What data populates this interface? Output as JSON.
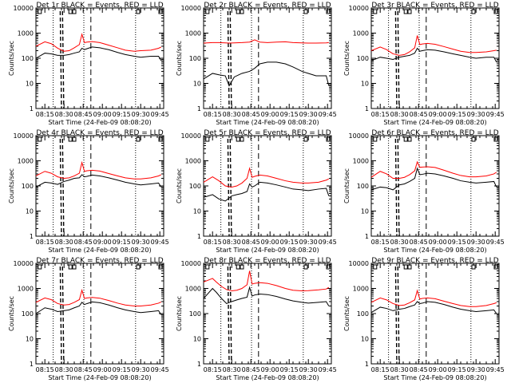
{
  "colors": {
    "events": "#000000",
    "lld": "#ff0000"
  },
  "chart_data": {
    "type": "line",
    "grid": "3x3",
    "yscale": "log",
    "ylim": [
      1,
      10000
    ],
    "y_ticks": [
      "1",
      "10",
      "100",
      "1000",
      "10000"
    ],
    "ylabel": "Counts/sec",
    "x_ticks": [
      "08:15",
      "08:30",
      "08:45",
      "09:00",
      "09:15",
      "09:30",
      "09:45"
    ],
    "xlim": [
      "08:08",
      "09:48"
    ],
    "xlabel": "Start Time (24-Feb-09 08:08:20)",
    "panels": [
      {
        "title": "Det 1r BLACK = Events, RED = LLD",
        "x": [
          "08:08",
          "08:15",
          "08:20",
          "08:25",
          "08:30",
          "08:34",
          "08:38",
          "08:42",
          "08:44",
          "08:46",
          "08:48",
          "08:52",
          "08:58",
          "09:05",
          "09:12",
          "09:18",
          "09:25",
          "09:30",
          "09:38",
          "09:44",
          "09:46"
        ],
        "series": [
          {
            "name": "BLACK = Events",
            "values": [
              100,
              160,
              150,
              130,
              130,
              140,
              160,
              180,
              250,
              220,
              240,
              280,
              260,
              220,
              170,
              140,
              120,
              110,
              120,
              120,
              80
            ]
          },
          {
            "name": "RED = LLD",
            "values": [
              300,
              450,
              380,
              250,
              190,
              200,
              260,
              350,
              900,
              420,
              440,
              460,
              420,
              330,
              260,
              210,
              190,
              200,
              210,
              250,
              280
            ]
          }
        ]
      },
      {
        "title": "Det 2r BLACK = Events, RED = LLD",
        "x": [
          "08:08",
          "08:15",
          "08:20",
          "08:25",
          "08:28",
          "08:32",
          "08:38",
          "08:44",
          "08:48",
          "08:52",
          "08:58",
          "09:05",
          "09:12",
          "09:18",
          "09:25",
          "09:30",
          "09:36",
          "09:44",
          "09:46"
        ],
        "series": [
          {
            "name": "BLACK = Events",
            "values": [
              15,
              25,
              22,
              20,
              8,
              18,
              25,
              30,
              40,
              60,
              70,
              70,
              60,
              45,
              30,
              25,
              20,
              20,
              8
            ]
          },
          {
            "name": "RED = LLD",
            "values": [
              400,
              420,
              420,
              410,
              400,
              410,
              420,
              440,
              540,
              440,
              420,
              440,
              450,
              420,
              410,
              400,
              400,
              410,
              420
            ]
          }
        ]
      },
      {
        "title": "Det 3r BLACK = Events, RED = LLD",
        "x": [
          "08:08",
          "08:15",
          "08:20",
          "08:25",
          "08:30",
          "08:34",
          "08:38",
          "08:42",
          "08:44",
          "08:46",
          "08:48",
          "08:52",
          "08:58",
          "09:05",
          "09:12",
          "09:18",
          "09:25",
          "09:30",
          "09:38",
          "09:44",
          "09:46"
        ],
        "series": [
          {
            "name": "BLACK = Events",
            "values": [
              80,
              110,
              100,
              90,
              110,
              120,
              130,
              160,
              250,
              190,
              200,
              220,
              210,
              180,
              150,
              130,
              110,
              100,
              110,
              110,
              70
            ]
          },
          {
            "name": "RED = LLD",
            "values": [
              200,
              280,
              220,
              150,
              130,
              140,
              180,
              260,
              800,
              350,
              370,
              390,
              360,
              290,
              230,
              190,
              170,
              170,
              180,
              200,
              210
            ]
          }
        ]
      },
      {
        "title": "Det 4r BLACK = Events, RED = LLD",
        "x": [
          "08:08",
          "08:15",
          "08:20",
          "08:25",
          "08:30",
          "08:34",
          "08:38",
          "08:42",
          "08:44",
          "08:46",
          "08:48",
          "08:52",
          "08:58",
          "09:05",
          "09:12",
          "09:18",
          "09:25",
          "09:30",
          "09:38",
          "09:44",
          "09:46"
        ],
        "series": [
          {
            "name": "BLACK = Events",
            "values": [
              90,
              140,
              130,
              115,
              150,
              170,
              200,
              210,
              280,
              230,
              240,
              270,
              250,
              210,
              170,
              140,
              120,
              110,
              120,
              130,
              90
            ]
          },
          {
            "name": "RED = LLD",
            "values": [
              250,
              380,
              320,
              230,
              200,
              210,
              250,
              320,
              850,
              380,
              400,
              420,
              390,
              310,
              250,
              210,
              190,
              190,
              210,
              250,
              280
            ]
          }
        ]
      },
      {
        "title": "Det 5r BLACK = Events, RED = LLD",
        "x": [
          "08:08",
          "08:15",
          "08:20",
          "08:25",
          "08:30",
          "08:34",
          "08:38",
          "08:42",
          "08:44",
          "08:46",
          "08:48",
          "08:52",
          "08:58",
          "09:05",
          "09:12",
          "09:18",
          "09:25",
          "09:30",
          "09:38",
          "09:44",
          "09:46"
        ],
        "series": [
          {
            "name": "BLACK = Events",
            "values": [
              35,
              45,
              30,
              25,
              40,
              45,
              50,
              60,
              120,
              90,
              100,
              140,
              130,
              110,
              90,
              75,
              70,
              65,
              75,
              80,
              40
            ]
          },
          {
            "name": "RED = LLD",
            "values": [
              140,
              230,
              160,
              100,
              90,
              100,
              130,
              200,
              500,
              220,
              240,
              270,
              250,
              200,
              160,
              140,
              130,
              130,
              140,
              170,
              190
            ]
          }
        ]
      },
      {
        "title": "Det 6r BLACK = Events, RED = LLD",
        "x": [
          "08:08",
          "08:15",
          "08:20",
          "08:25",
          "08:30",
          "08:34",
          "08:38",
          "08:42",
          "08:44",
          "08:46",
          "08:48",
          "08:52",
          "08:58",
          "09:05",
          "09:12",
          "09:18",
          "09:25",
          "09:30",
          "09:38",
          "09:44",
          "09:46"
        ],
        "series": [
          {
            "name": "BLACK = Events",
            "values": [
              70,
              90,
              85,
              70,
              110,
              120,
              150,
              200,
              500,
              280,
              290,
              320,
              300,
              250,
              200,
              160,
              140,
              130,
              140,
              150,
              90
            ]
          },
          {
            "name": "RED = LLD",
            "values": [
              220,
              380,
              300,
              200,
              200,
              220,
              280,
              400,
              900,
              550,
              560,
              580,
              540,
              420,
              320,
              260,
              230,
              230,
              250,
              300,
              350
            ]
          }
        ]
      },
      {
        "title": "Det 7r BLACK = Events, RED = LLD",
        "x": [
          "08:08",
          "08:15",
          "08:20",
          "08:25",
          "08:30",
          "08:34",
          "08:38",
          "08:42",
          "08:44",
          "08:46",
          "08:48",
          "08:52",
          "08:58",
          "09:05",
          "09:12",
          "09:18",
          "09:25",
          "09:30",
          "09:38",
          "09:44",
          "09:46"
        ],
        "series": [
          {
            "name": "BLACK = Events",
            "values": [
              100,
              170,
              150,
              120,
              130,
              140,
              170,
              200,
              280,
              230,
              250,
              290,
              270,
              220,
              170,
              140,
              120,
              110,
              120,
              130,
              90
            ]
          },
          {
            "name": "RED = LLD",
            "values": [
              280,
              420,
              360,
              250,
              220,
              230,
              280,
              360,
              850,
              400,
              420,
              440,
              410,
              330,
              260,
              220,
              200,
              200,
              220,
              260,
              290
            ]
          }
        ]
      },
      {
        "title": "Det 8r BLACK = Events, RED = LLD",
        "x": [
          "08:08",
          "08:15",
          "08:18",
          "08:22",
          "08:26",
          "08:30",
          "08:34",
          "08:38",
          "08:42",
          "08:44",
          "08:46",
          "08:48",
          "08:52",
          "08:58",
          "09:05",
          "09:12",
          "09:18",
          "09:25",
          "09:30",
          "09:38",
          "09:44",
          "09:46"
        ],
        "series": [
          {
            "name": "BLACK = Events",
            "values": [
              400,
              1000,
              700,
              400,
              250,
              300,
              350,
              400,
              450,
              1100,
              500,
              550,
              600,
              570,
              480,
              380,
              320,
              280,
              260,
              280,
              300,
              200
            ]
          },
          {
            "name": "RED = LLD",
            "values": [
              1800,
              2500,
              1800,
              1200,
              900,
              800,
              850,
              1000,
              1400,
              5000,
              1500,
              1600,
              1700,
              1600,
              1300,
              1000,
              850,
              800,
              820,
              880,
              950,
              1100
            ]
          }
        ]
      },
      {
        "title": "Det 9r BLACK = Events, RED = LLD",
        "x": [
          "08:08",
          "08:15",
          "08:20",
          "08:25",
          "08:30",
          "08:34",
          "08:38",
          "08:42",
          "08:44",
          "08:46",
          "08:48",
          "08:52",
          "08:58",
          "09:05",
          "09:12",
          "09:18",
          "09:25",
          "09:30",
          "09:38",
          "09:44",
          "09:46"
        ],
        "series": [
          {
            "name": "BLACK = Events",
            "values": [
              110,
              180,
              160,
              130,
              150,
              160,
              190,
              220,
              300,
              250,
              260,
              300,
              280,
              230,
              180,
              150,
              130,
              120,
              130,
              140,
              100
            ]
          },
          {
            "name": "RED = LLD",
            "values": [
              280,
              420,
              350,
              250,
              210,
              220,
              270,
              350,
              820,
              380,
              400,
              420,
              390,
              310,
              250,
              210,
              190,
              190,
              210,
              250,
              270
            ]
          }
        ]
      }
    ]
  }
}
